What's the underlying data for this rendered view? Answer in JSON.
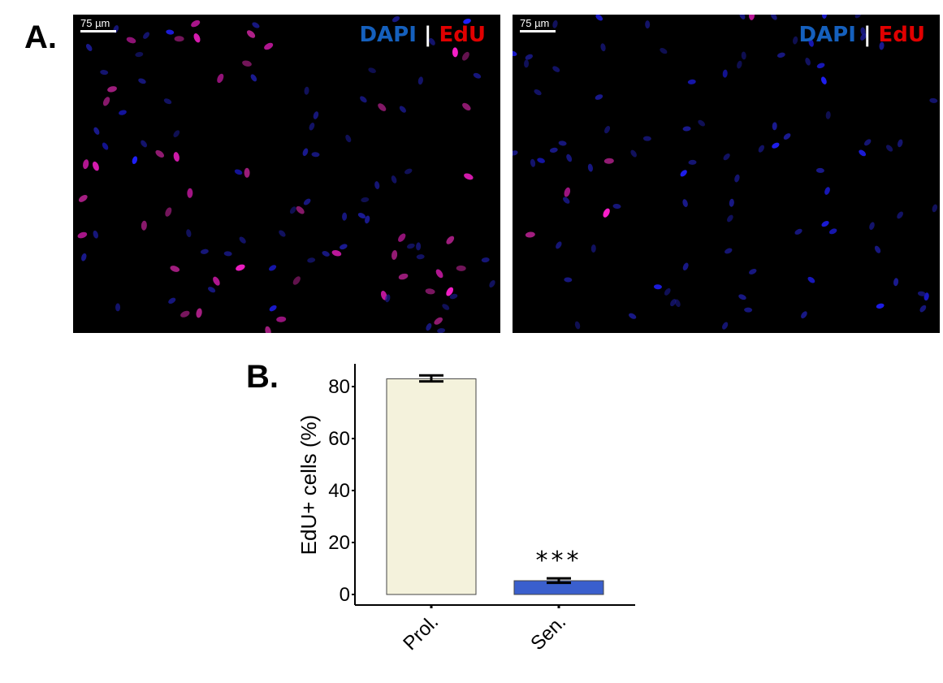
{
  "panels": {
    "a_label": "A.",
    "b_label": "B.",
    "images": [
      {
        "scale_bar": "75 µm",
        "legend": {
          "dapi": "DAPI",
          "sep": "|",
          "edu": "EdU"
        }
      },
      {
        "scale_bar": "75 µm",
        "legend": {
          "dapi": "DAPI",
          "sep": "|",
          "edu": "EdU"
        }
      }
    ],
    "colors": {
      "dapi": "#1560bd",
      "edu": "#e00000"
    }
  },
  "chart_data": {
    "type": "bar",
    "categories": [
      "Prol.",
      "Sen."
    ],
    "values": [
      83,
      5.3
    ],
    "error": [
      [
        82,
        84.3
      ],
      [
        4.5,
        6.2
      ]
    ],
    "colors": [
      "#f4f2dc",
      "#3a5fcd"
    ],
    "annotations": [
      {
        "category": "Sen.",
        "text": "***"
      }
    ],
    "ylabel": "EdU+ cells (%)",
    "xlabel": "",
    "yticks": [
      0,
      20,
      40,
      60,
      80
    ],
    "ylim": [
      0,
      88
    ],
    "grid": false
  }
}
